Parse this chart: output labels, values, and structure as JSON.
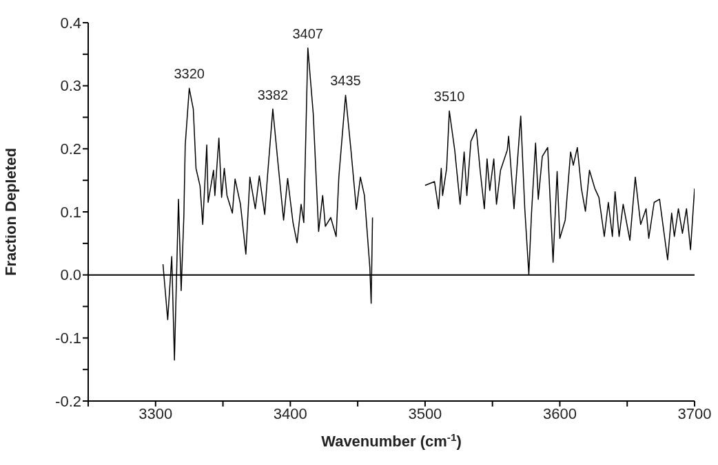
{
  "chart_data": {
    "type": "line",
    "xlabel": "Wavenumber (cm$^{-1}$)",
    "ylabel": "Fraction Depleted",
    "color": "#000000",
    "xlim": [
      3250,
      3700
    ],
    "xticks": [
      {
        "value": 3250,
        "label": null
      },
      3300,
      {
        "value": 3350,
        "label": null
      },
      3400,
      {
        "value": 3450,
        "label": null
      },
      3500,
      {
        "value": 3550,
        "label": null
      },
      3600,
      {
        "value": 3650,
        "label": null
      },
      3700
    ],
    "ylim": [
      -0.2,
      0.4
    ],
    "yticks": [
      -0.2,
      {
        "value": -0.15,
        "label": null
      },
      -0.1,
      {
        "value": -0.05,
        "label": null
      },
      {
        "value": 0,
        "label": "0.0"
      },
      {
        "value": 0.05,
        "label": null
      },
      0.1,
      {
        "value": 0.15,
        "label": null
      },
      0.2,
      {
        "value": 0.25,
        "label": null
      },
      0.3,
      {
        "value": 0.35,
        "label": null
      },
      0.4
    ],
    "x": [
      3305.5,
      3309,
      3312,
      3314,
      3317,
      3319,
      3321,
      3322,
      3325,
      3328,
      3330,
      3333,
      3335,
      3338,
      3339,
      3343,
      3344,
      3347,
      3349,
      3351,
      3353,
      3357,
      3359,
      3363,
      3367,
      3370,
      3374,
      3377,
      3381,
      3383,
      3387,
      3391,
      3395,
      3398,
      3402,
      3405,
      3408,
      3410,
      3413,
      3417,
      3421,
      3424,
      3426,
      3430,
      3434,
      3436,
      3441,
      3445,
      3449,
      3452,
      3455,
      3459,
      3460,
      3461,
      3480,
      3500,
      3507,
      3510,
      3512,
      3513,
      3516,
      3518,
      3522,
      3526,
      3529,
      3531,
      3534,
      3538,
      3541,
      3544,
      3546,
      3548,
      3551,
      3553,
      3556,
      3561,
      3562,
      3566,
      3571,
      3574,
      3577,
      3579,
      3582,
      3584,
      3587,
      3591,
      3595,
      3598,
      3600,
      3604,
      3608,
      3610,
      3613,
      3616,
      3619,
      3622,
      3626,
      3629,
      3633,
      3636,
      3639,
      3641,
      3644,
      3647,
      3652,
      3656,
      3660,
      3664,
      3666,
      3670,
      3674,
      3680,
      3683,
      3685,
      3688,
      3691,
      3694,
      3697,
      3700
    ],
    "values": [
      0.017,
      -0.071,
      0.029,
      -0.135,
      0.12,
      -0.025,
      0.094,
      0.206,
      0.296,
      0.263,
      0.169,
      0.141,
      0.08,
      0.206,
      0.115,
      0.166,
      0.126,
      0.217,
      0.123,
      0.169,
      0.126,
      0.098,
      0.152,
      0.112,
      0.033,
      0.155,
      0.105,
      0.157,
      0.096,
      0.155,
      0.263,
      0.174,
      0.087,
      0.153,
      0.083,
      0.051,
      0.112,
      0.083,
      0.36,
      0.256,
      0.069,
      0.126,
      0.077,
      0.091,
      0.061,
      0.155,
      0.285,
      0.198,
      0.104,
      0.155,
      0.126,
      0.012,
      -0.045,
      0.091,
      null,
      0.142,
      0.148,
      0.105,
      0.169,
      0.126,
      0.169,
      0.26,
      0.198,
      0.112,
      0.195,
      0.126,
      0.212,
      0.231,
      0.163,
      0.105,
      0.184,
      0.134,
      0.184,
      0.112,
      0.166,
      0.198,
      0.22,
      0.105,
      0.252,
      0.105,
      0.001,
      0.098,
      0.209,
      0.12,
      0.188,
      0.202,
      0.02,
      0.164,
      0.058,
      0.087,
      0.195,
      0.174,
      0.202,
      0.137,
      0.101,
      0.166,
      0.137,
      0.123,
      0.061,
      0.115,
      0.061,
      0.132,
      0.061,
      0.112,
      0.055,
      0.155,
      0.08,
      0.105,
      0.058,
      0.115,
      0.12,
      0.024,
      0.098,
      0.061,
      0.105,
      0.066,
      0.105,
      0.04,
      0.137
    ],
    "annotations": [
      {
        "text": "3320",
        "x": 3325,
        "y": 0.296
      },
      {
        "text": "3382",
        "x": 3387,
        "y": 0.263
      },
      {
        "text": "3407",
        "x": 3413,
        "y": 0.36
      },
      {
        "text": "3435",
        "x": 3441,
        "y": 0.285
      },
      {
        "text": "3510",
        "x": 3518,
        "y": 0.26
      }
    ],
    "ref_lines": [
      {
        "axis": "y",
        "value": 0,
        "color": "#000000"
      }
    ]
  }
}
